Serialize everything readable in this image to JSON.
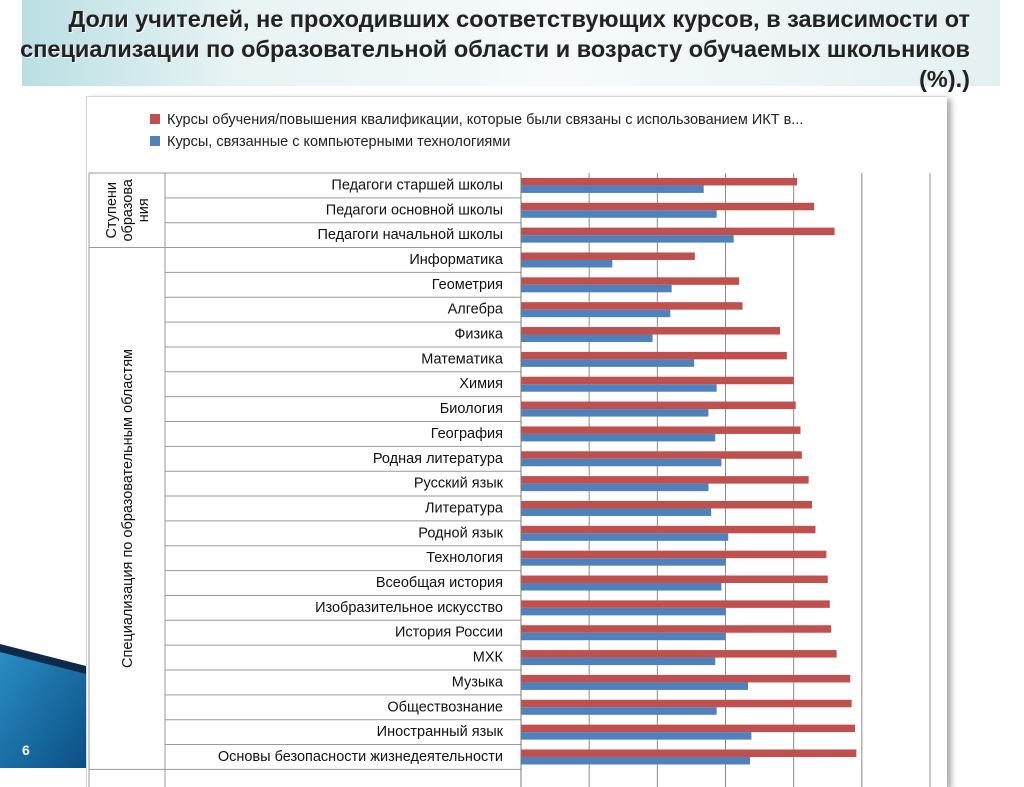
{
  "slide": {
    "title": "Доли учителей, не проходивших соответствующих курсов, в зависимости от специализации по образовательной области и возрасту обучаемых школьников (%).)",
    "number": "6",
    "colors": {
      "ict_series": "#c0504d",
      "computer_series": "#4f81bd"
    }
  },
  "chart_data": {
    "type": "bar",
    "orientation": "horizontal",
    "legend_position": "top",
    "grid": true,
    "xlim": [
      0,
      60
    ],
    "series": [
      {
        "name": "Курсы обучения/повышения квалификации, которые были связаны с использованием ИКТ в...",
        "color": "#c0504d",
        "values": [
          40.5,
          43,
          46,
          25.5,
          32,
          32.5,
          38,
          39,
          40,
          40.3,
          41,
          41.2,
          42.2,
          42.7,
          43.2,
          44.8,
          45,
          45.3,
          45.5,
          46.3,
          48.3,
          48.5,
          49,
          49.2
        ]
      },
      {
        "name": "Курсы, связанные с компьютерными технологиями",
        "color": "#4f81bd",
        "values": [
          26.8,
          28.7,
          31.2,
          13.4,
          22.1,
          21.9,
          19.3,
          25.4,
          28.7,
          27.5,
          28.5,
          29.4,
          27.5,
          27.9,
          30.4,
          30,
          29.4,
          30,
          30,
          28.5,
          33.3,
          28.7,
          33.8,
          33.6
        ]
      }
    ],
    "categories": [
      "Педагоги старшей школы",
      "Педагоги основной школы",
      "Педагоги начальной школы",
      "Информатика",
      "Геометрия",
      "Алгебра",
      "Физика",
      "Математика",
      "Химия",
      "Биология",
      "География",
      "Родная литература",
      "Русский язык",
      "Литература",
      "Родной язык",
      "Технология",
      "Всеобщая история",
      "Изобразительное искусство",
      "История России",
      "МХК",
      "Музыка",
      "Обществознание",
      "Иностранный язык",
      "Основы безопасности жизнедеятельности"
    ],
    "groups": [
      {
        "label_lines": [
          "Ступени",
          "образова",
          "ния"
        ],
        "start": 0,
        "end": 2
      },
      {
        "label_lines": [
          "Специализация по образовательным областям"
        ],
        "start": 3,
        "end": 23
      }
    ]
  }
}
